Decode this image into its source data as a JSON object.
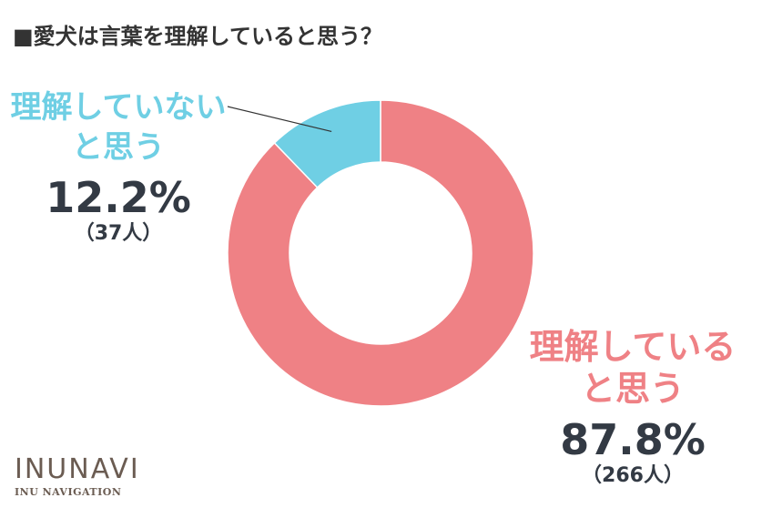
{
  "title": "■愛犬は言葉を理解していると思う？",
  "chart_data": {
    "type": "pie",
    "variant": "donut",
    "title": "■愛犬は言葉を理解していると思う？",
    "series": [
      {
        "name": "理解していると思う",
        "label_line1": "理解している",
        "label_line2": "と思う",
        "value": 87.8,
        "value_label": "87.8%",
        "count": 266,
        "count_label": "（266人）",
        "color": "#ef8185"
      },
      {
        "name": "理解していないと思う",
        "label_line1": "理解していない",
        "label_line2": "と思う",
        "value": 12.2,
        "value_label": "12.2%",
        "count": 37,
        "count_label": "（37人）",
        "color": "#6fcfe4"
      }
    ]
  },
  "logo": {
    "main": "INUNAVI",
    "sub": "INU NAVIGATION"
  }
}
